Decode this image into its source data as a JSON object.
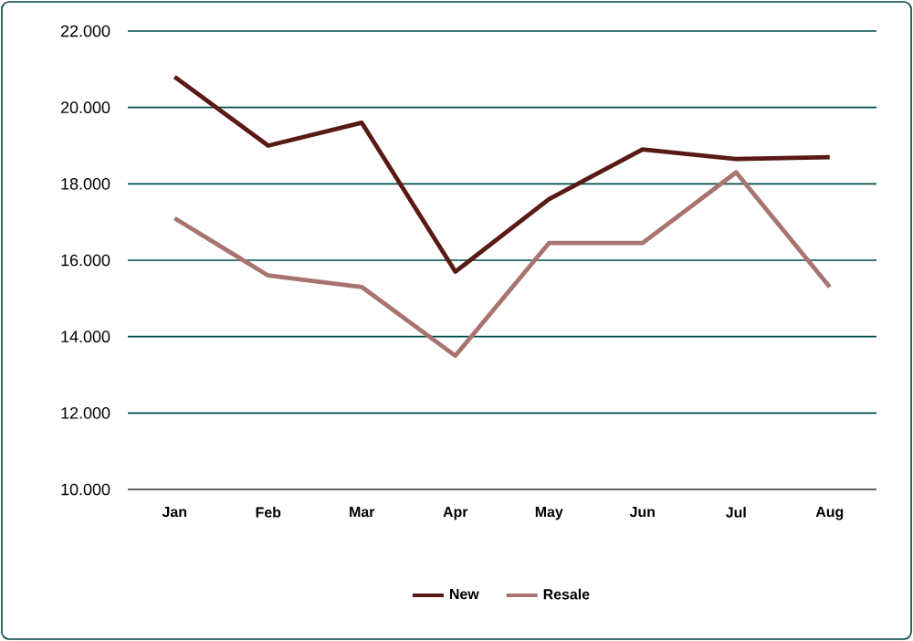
{
  "chart_data": {
    "type": "line",
    "categories": [
      "Jan",
      "Feb",
      "Mar",
      "Apr",
      "May",
      "Jun",
      "Jul",
      "Aug"
    ],
    "series": [
      {
        "name": "New",
        "color": "#5a1a14",
        "values": [
          20800,
          19000,
          19600,
          15700,
          17600,
          18900,
          18650,
          18700
        ]
      },
      {
        "name": "Resale",
        "color": "#a87470",
        "values": [
          17100,
          15600,
          15300,
          13500,
          16450,
          16450,
          18300,
          15300
        ]
      }
    ],
    "ylim": [
      10000,
      22000
    ],
    "yticks": [
      {
        "value": 10000,
        "label": "10.000"
      },
      {
        "value": 12000,
        "label": "12.000"
      },
      {
        "value": 14000,
        "label": "14.000"
      },
      {
        "value": 16000,
        "label": "16.000"
      },
      {
        "value": 18000,
        "label": "18.000"
      },
      {
        "value": 20000,
        "label": "20.000"
      },
      {
        "value": 22000,
        "label": "22.000"
      }
    ],
    "grid": "y",
    "legend": "bottom",
    "marker": "none",
    "line_style": "solid"
  }
}
